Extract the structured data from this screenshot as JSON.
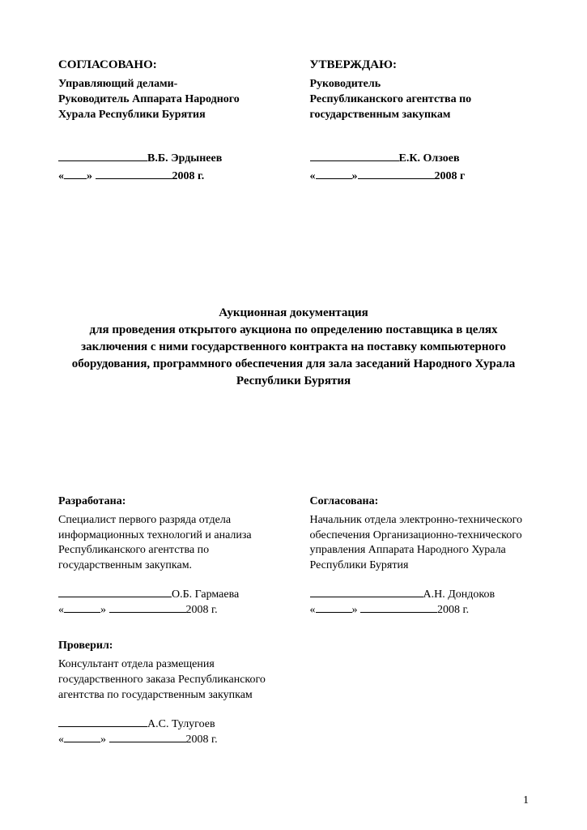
{
  "approval": {
    "left": {
      "heading": "СОГЛАСОВАНО:",
      "role": "Управляющий делами-\nРуководитель Аппарата Народного Хурала Республики Бурятия",
      "name": "В.Б. Эрдынеев",
      "year": "2008 г."
    },
    "right": {
      "heading": "УТВЕРЖДАЮ:",
      "role": "Руководитель\nРеспубликанского агентства по государственным закупкам",
      "name": "Е.К. Олзоев",
      "year": "2008 г"
    }
  },
  "title": {
    "line1": "Аукционная документация",
    "body": "для проведения открытого аукциона по определению поставщика в целях заключения с ними государственного  контракта на поставку компьютерного оборудования, программного обеспечения для зала заседаний Народного Хурала Республики Бурятия"
  },
  "lower": {
    "developed": {
      "heading": "Разработана:",
      "desc": "Специалист первого разряда отдела информационных технологий и анализа Республиканского агентства по государственным закупкам.",
      "name": "О.Б. Гармаева",
      "year": "2008 г."
    },
    "agreed": {
      "heading": "Согласована:",
      "desc": "Начальник отдела электронно-технического обеспечения Организационно-технического управления Аппарата Народного Хурала Республики Бурятия",
      "name": "А.Н. Дондоков",
      "year": "2008 г."
    },
    "checked": {
      "heading": "Проверил:",
      "desc": "Консультант отдела размещения государственного заказа Республиканского агентства по государственным закупкам",
      "name": "А.С. Тулугоев",
      "year": "2008 г."
    }
  },
  "page_number": "1"
}
